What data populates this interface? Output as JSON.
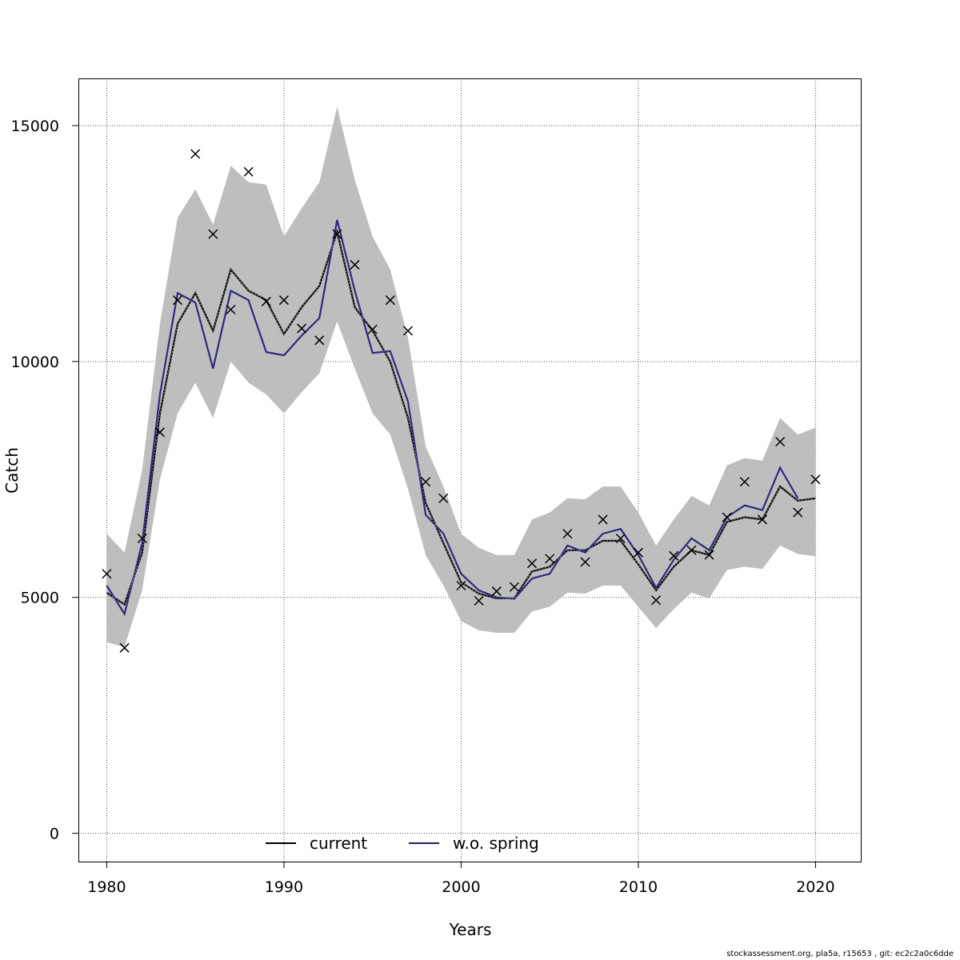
{
  "footer": "stockassessment.org, pla5a, r15653 , git: ec2c2a0c6dde",
  "chart_data": {
    "type": "line",
    "xlabel": "Years",
    "ylabel": "Catch",
    "xlim": [
      1978.4,
      2022.6
    ],
    "ylim": [
      -600,
      16000
    ],
    "xticks": [
      1980,
      1990,
      2000,
      2010,
      2020
    ],
    "yticks": [
      0,
      5000,
      10000,
      15000
    ],
    "grid": true,
    "legend_position": "bottom",
    "legend": [
      {
        "label": "current",
        "color": "#000000"
      },
      {
        "label": "w.o. spring",
        "color": "#2d2a80"
      }
    ],
    "x": [
      1980,
      1981,
      1982,
      1983,
      1984,
      1985,
      1986,
      1987,
      1988,
      1989,
      1990,
      1991,
      1992,
      1993,
      1994,
      1995,
      1996,
      1997,
      1998,
      1999,
      2000,
      2001,
      2002,
      2003,
      2004,
      2005,
      2006,
      2007,
      2008,
      2009,
      2010,
      2011,
      2012,
      2013,
      2014,
      2015,
      2016,
      2017,
      2018,
      2019,
      2020
    ],
    "series": [
      {
        "name": "current",
        "color": "#000000",
        "values": [
          5100,
          4850,
          5950,
          8900,
          10800,
          11450,
          10650,
          11950,
          11500,
          11300,
          10580,
          11150,
          11600,
          12750,
          11150,
          10650,
          10000,
          8800,
          7000,
          6150,
          5320,
          5080,
          4980,
          4980,
          5550,
          5650,
          6000,
          6000,
          6200,
          6200,
          5700,
          5150,
          5650,
          6000,
          5900,
          6600,
          6700,
          6650,
          7350,
          7050,
          7100
        ]
      },
      {
        "name": "w.o. spring",
        "color": "#2d2a80",
        "values": [
          5250,
          4650,
          6150,
          9300,
          11450,
          11250,
          9850,
          11500,
          11300,
          10200,
          10130,
          10550,
          10920,
          13000,
          11500,
          10180,
          10220,
          9150,
          6750,
          6350,
          5500,
          5150,
          5000,
          4970,
          5400,
          5500,
          6100,
          5950,
          6350,
          6450,
          5900,
          5200,
          5800,
          6250,
          6000,
          6700,
          6950,
          6850,
          7750,
          7100,
          null
        ]
      }
    ],
    "confidence_band": {
      "color": "#bebebe",
      "lower": [
        4050,
        3950,
        5150,
        7500,
        8900,
        9550,
        8800,
        10000,
        9550,
        9300,
        8900,
        9350,
        9750,
        10850,
        9850,
        8900,
        8450,
        7300,
        5900,
        5250,
        4500,
        4300,
        4250,
        4250,
        4700,
        4800,
        5100,
        5080,
        5250,
        5250,
        4800,
        4350,
        4750,
        5100,
        4980,
        5580,
        5650,
        5600,
        6100,
        5920,
        5870
      ]
    },
    "band_upper": [
      6350,
      5950,
      7700,
      10800,
      13050,
      13650,
      12900,
      14150,
      13800,
      13750,
      12650,
      13250,
      13800,
      15400,
      13850,
      12650,
      11950,
      10500,
      8200,
      7350,
      6350,
      6050,
      5900,
      5900,
      6650,
      6800,
      7100,
      7080,
      7350,
      7350,
      6800,
      6100,
      6650,
      7150,
      6950,
      7800,
      7950,
      7900,
      8800,
      8450,
      8600
    ],
    "observations": [
      5500,
      3930,
      6250,
      8500,
      11300,
      14400,
      12700,
      11100,
      14020,
      11270,
      11300,
      10700,
      10450,
      12700,
      12050,
      10680,
      11300,
      10650,
      7450,
      7100,
      5250,
      4930,
      5130,
      5220,
      5720,
      5820,
      6350,
      5750,
      6650,
      6250,
      5950,
      4940,
      5880,
      6000,
      5900,
      6700,
      7450,
      6650,
      8300,
      6800,
      7500
    ]
  }
}
